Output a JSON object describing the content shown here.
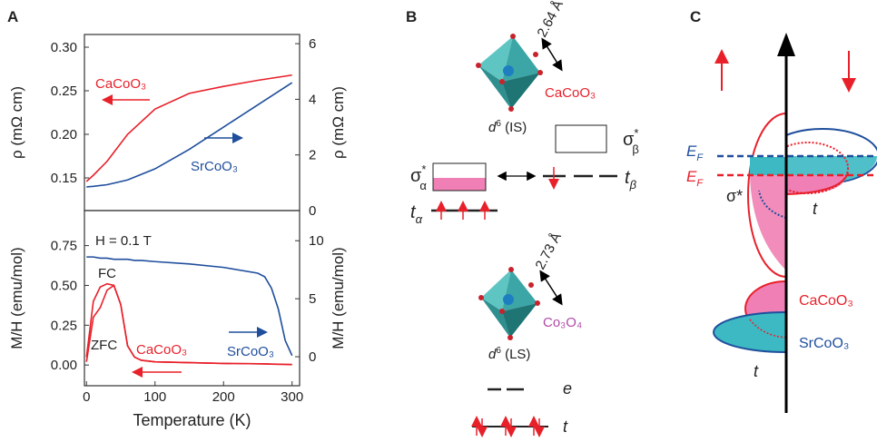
{
  "chart_data": [
    {
      "type": "line",
      "panel": "A",
      "xlim": [
        -3,
        311
      ],
      "ylim": [
        0.1125,
        0.3146
      ],
      "y2lim": [
        0,
        6.33
      ],
      "ylabel": "ρ (mΩ cm)",
      "y2label": "ρ (mΩ cm)",
      "yticks": [
        0.15,
        {
          "value": 0.2,
          "label": "0.20"
        },
        0.25,
        {
          "value": 0.3,
          "label": "0.30"
        }
      ],
      "y2ticks": [
        0,
        2,
        4,
        6
      ],
      "x": [
        0,
        10,
        30,
        60,
        100,
        150,
        200,
        250,
        300
      ],
      "series": [
        {
          "name": "CaCoO₃",
          "color": "#e8202a",
          "axis": "y",
          "values": [
            0.146,
            0.153,
            0.169,
            0.2,
            0.229,
            0.247,
            0.255,
            0.262,
            0.268
          ]
        },
        {
          "name": "SrCoO₃",
          "color": "#1f4e9c",
          "axis": "y2",
          "values": [
            0.85,
            0.87,
            0.93,
            1.1,
            1.5,
            2.2,
            3.0,
            3.8,
            4.6
          ]
        }
      ]
    },
    {
      "type": "line",
      "xlim": [
        -3,
        311
      ],
      "ylim": [
        -0.13,
        0.97
      ],
      "y2lim": [
        -2.5,
        12.6
      ],
      "xlabel": "Temperature (K)",
      "ylabel": "M/H (emu/mol)",
      "y2label": "M/H (emu/mol)",
      "xticks": [
        0,
        100,
        200,
        300
      ],
      "yticks": [
        {
          "value": 0,
          "label": "0.00"
        },
        0.25,
        {
          "value": 0.5,
          "label": "0.50"
        },
        0.75
      ],
      "y2ticks": [
        0,
        5,
        10
      ],
      "annotations": [
        "H = 0.1 T",
        "CaCoO₃"
      ],
      "x": [
        0,
        10,
        20,
        30,
        40,
        50,
        60,
        70,
        80,
        100,
        150,
        200,
        250,
        260,
        270,
        280,
        290,
        300
      ],
      "series": [
        {
          "name": "SrCoO₃",
          "color": "#1f4e9c",
          "axis": "y2",
          "values": [
            8.6,
            8.6,
            8.5,
            8.5,
            8.4,
            8.4,
            8.4,
            8.3,
            8.3,
            8.2,
            8.0,
            7.7,
            7.2,
            6.9,
            5.9,
            4.1,
            1.4,
            0.1
          ]
        },
        {
          "name": "FC",
          "color": "#e8202a",
          "axis": "y",
          "values": [
            0.05,
            0.4,
            0.49,
            0.51,
            0.5,
            0.38,
            0.12,
            0.05,
            0.03,
            0.02,
            0.015,
            0.01,
            0.008,
            0.007,
            0.006,
            0.005,
            0.004,
            0.003
          ]
        },
        {
          "name": "ZFC",
          "color": "#e8202a",
          "axis": "y",
          "values": [
            0.02,
            0.3,
            0.36,
            0.47,
            0.5,
            0.38,
            0.12,
            0.05,
            0.03,
            0.02,
            0.015,
            0.01,
            0.008,
            0.007,
            0.006,
            0.005,
            0.004,
            0.003
          ]
        }
      ]
    }
  ],
  "panel_b": {
    "label": "B",
    "top": {
      "distance": "2.64 Å",
      "compound": "CaCoO₃",
      "config": {
        "base": "d",
        "sup": "6",
        "rest": " (IS)"
      }
    },
    "sigma_beta": {
      "base": "σ",
      "sup": "*",
      "sub": "β"
    },
    "t_beta": {
      "base": "t",
      "sub": "β"
    },
    "sigma_alpha": {
      "base": "σ",
      "sup": "*",
      "sub": "α"
    },
    "t_alpha": {
      "base": "t",
      "sub": "α"
    },
    "bottom": {
      "distance": "2.73 Å",
      "compound": "Co₃O₄",
      "config": {
        "base": "d",
        "sup": "6",
        "rest": " (LS)"
      }
    },
    "e": "e",
    "t": "t"
  },
  "panel_c": {
    "label": "C",
    "ef": {
      "base": "E",
      "sub": "F"
    },
    "sigma": "σ*",
    "t_upper": "t",
    "compounds": [
      "CaCoO₃",
      "SrCoO₃"
    ],
    "t_lower": "t"
  }
}
